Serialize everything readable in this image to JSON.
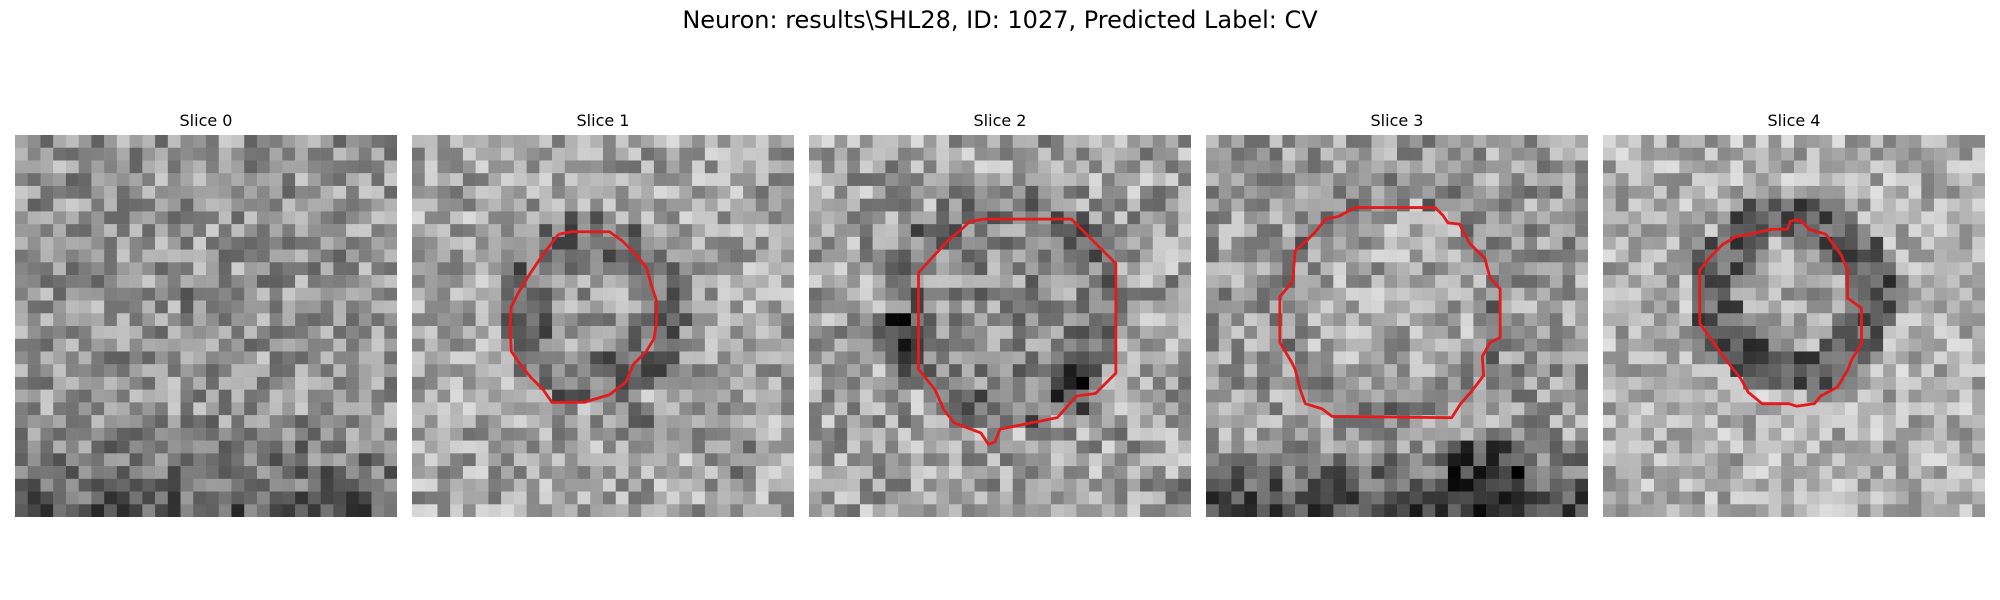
{
  "figure": {
    "title": "Neuron: results\\SHL28, ID: 1027, Predicted Label: CV"
  },
  "contour_color": "#e41a1c",
  "panels": [
    {
      "title": "Slice 0",
      "has_contour": false
    },
    {
      "title": "Slice 1",
      "has_contour": true
    },
    {
      "title": "Slice 2",
      "has_contour": true
    },
    {
      "title": "Slice 3",
      "has_contour": true
    },
    {
      "title": "Slice 4",
      "has_contour": true
    }
  ]
}
